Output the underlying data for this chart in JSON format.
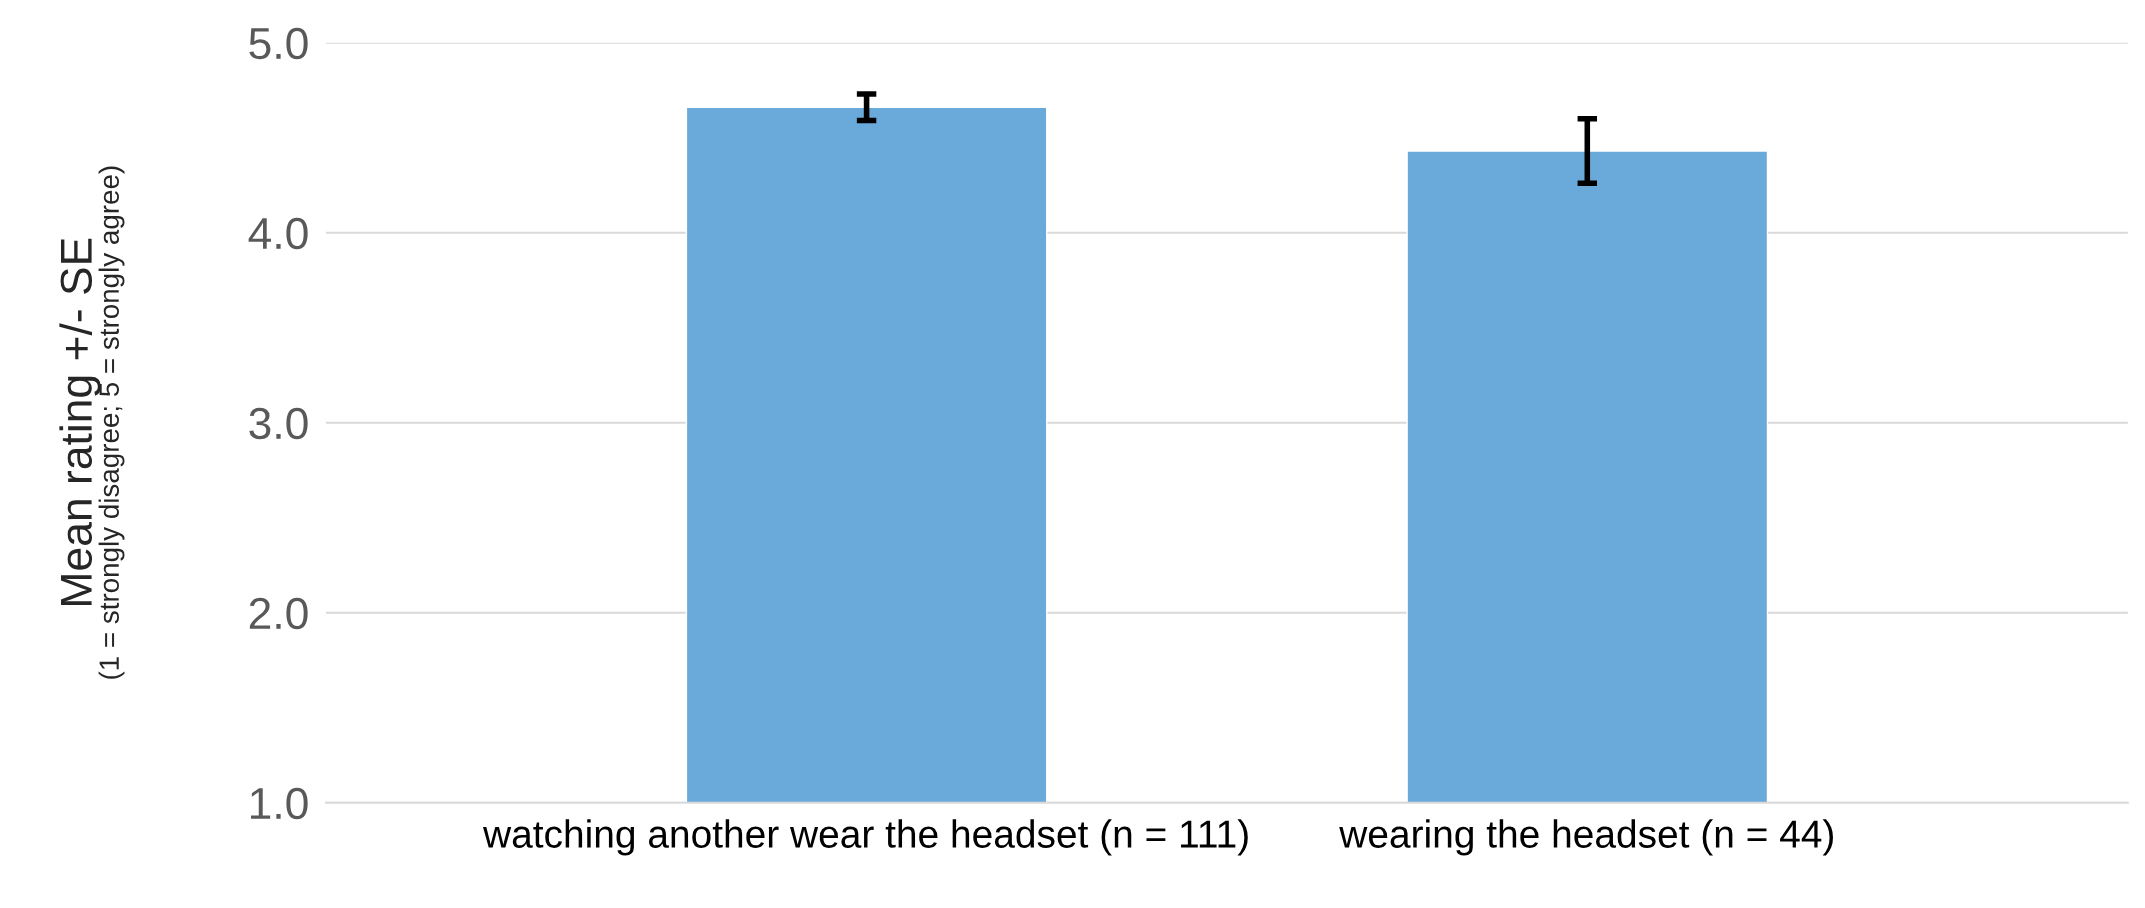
{
  "chart_data": {
    "type": "bar",
    "ylabel": "Mean rating +/- SE",
    "annotations": [
      "(1 = strongly disagree; 5 = strongly agree)"
    ],
    "categories": [
      "watching another wear the headset (n = 111)",
      "wearing the headset (n = 44)"
    ],
    "values": [
      4.66,
      4.43
    ],
    "errors": [
      0.07,
      0.17
    ],
    "color": "#6aaadb",
    "ylim": [
      1.0,
      5.0
    ],
    "yticks": [
      {
        "value": 1.0,
        "label": "1.0"
      },
      {
        "value": 2.0,
        "label": "2.0"
      },
      {
        "value": 3.0,
        "label": "3.0"
      },
      {
        "value": 4.0,
        "label": "4.0"
      },
      {
        "value": 5.0,
        "label": "5.0"
      }
    ],
    "grid": "y"
  }
}
